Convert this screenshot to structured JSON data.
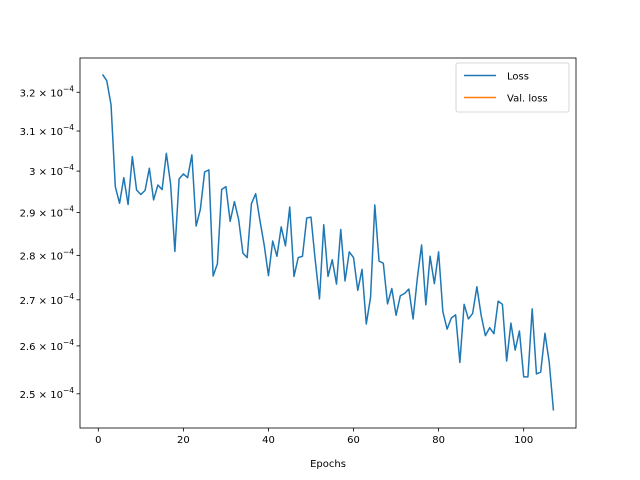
{
  "chart_data": {
    "type": "line",
    "title": "",
    "xlabel": "Epochs",
    "ylabel": "",
    "xlim": [
      -4.3,
      112.3
    ],
    "ylim": [
      0.0002431,
      0.0003291
    ],
    "y_scale": "log",
    "grid": false,
    "legend_position": "upper-right",
    "x_ticks": [
      0,
      20,
      40,
      60,
      80,
      100
    ],
    "x_tick_labels": [
      "0",
      "20",
      "40",
      "60",
      "80",
      "100"
    ],
    "y_ticks": [
      0.00025,
      0.00026,
      0.00027,
      0.00028,
      0.00029,
      0.0003,
      0.00031,
      0.00032
    ],
    "y_tick_labels": [
      {
        "mantissa": "2.5",
        "base": "10",
        "exp": "−4"
      },
      {
        "mantissa": "2.6",
        "base": "10",
        "exp": "−4"
      },
      {
        "mantissa": "2.7",
        "base": "10",
        "exp": "−4"
      },
      {
        "mantissa": "2.8",
        "base": "10",
        "exp": "−4"
      },
      {
        "mantissa": "2.9",
        "base": "10",
        "exp": "−4"
      },
      {
        "mantissa": "3",
        "base": "10",
        "exp": "−4"
      },
      {
        "mantissa": "3.1",
        "base": "10",
        "exp": "−4"
      },
      {
        "mantissa": "3.2",
        "base": "10",
        "exp": "−4"
      }
    ],
    "series": [
      {
        "name": "Loss",
        "color": "#1f77b4",
        "x_start": 1,
        "x_step": 1,
        "y": [
          0.0003247,
          0.000323,
          0.0003167,
          0.0002962,
          0.0002922,
          0.0002984,
          0.0002919,
          0.0003036,
          0.0002954,
          0.0002943,
          0.0002953,
          0.0003007,
          0.000293,
          0.0002966,
          0.0002955,
          0.0003044,
          0.0002968,
          0.0002809,
          0.0002981,
          0.0002993,
          0.0002984,
          0.000304,
          0.0002868,
          0.0002908,
          0.0002998,
          0.0003003,
          0.0002753,
          0.0002781,
          0.0002955,
          0.0002962,
          0.0002879,
          0.0002926,
          0.0002883,
          0.0002805,
          0.0002795,
          0.0002921,
          0.0002945,
          0.0002881,
          0.0002824,
          0.0002754,
          0.0002833,
          0.0002798,
          0.0002866,
          0.0002822,
          0.0002913,
          0.0002752,
          0.0002795,
          0.0002798,
          0.0002887,
          0.0002889,
          0.0002789,
          0.0002702,
          0.0002871,
          0.0002752,
          0.000279,
          0.0002735,
          0.000286,
          0.0002742,
          0.0002808,
          0.0002795,
          0.0002721,
          0.0002768,
          0.0002647,
          0.0002705,
          0.0002918,
          0.0002787,
          0.0002782,
          0.0002691,
          0.0002725,
          0.0002666,
          0.0002709,
          0.0002714,
          0.0002724,
          0.0002658,
          0.0002748,
          0.0002824,
          0.0002689,
          0.0002798,
          0.0002736,
          0.0002808,
          0.0002674,
          0.0002636,
          0.000266,
          0.0002667,
          0.0002565,
          0.000269,
          0.0002658,
          0.000267,
          0.0002729,
          0.0002666,
          0.0002622,
          0.0002639,
          0.0002626,
          0.0002697,
          0.000269,
          0.0002568,
          0.0002649,
          0.0002591,
          0.0002632,
          0.0002535,
          0.0002535,
          0.000268,
          0.0002541,
          0.0002545,
          0.0002627,
          0.0002566,
          0.0002466
        ]
      },
      {
        "name": "Val. loss",
        "color": "#ff7f0e",
        "x_start": 1,
        "x_step": 1,
        "y": []
      }
    ]
  }
}
